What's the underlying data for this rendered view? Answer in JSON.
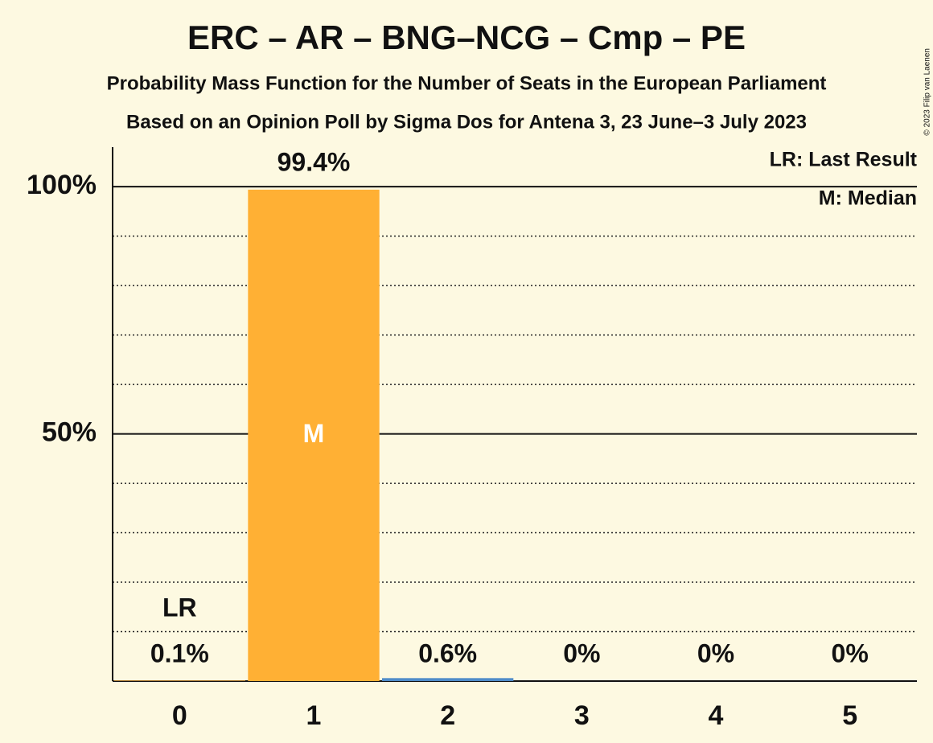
{
  "chart_data": {
    "type": "bar",
    "title": "ERC – AR – BNG–NCG – Cmp – PE",
    "subtitle": "Probability Mass Function for the Number of Seats in the European Parliament",
    "subtitle2": "Based on an Opinion Poll by Sigma Dos for Antena 3, 23 June–3 July 2023",
    "categories": [
      "0",
      "1",
      "2",
      "3",
      "4",
      "5"
    ],
    "values": [
      0.1,
      99.4,
      0.6,
      0,
      0,
      0
    ],
    "value_labels": [
      "0.1%",
      "99.4%",
      "0.6%",
      "0%",
      "0%",
      "0%"
    ],
    "colors": [
      "#ffb034",
      "#ffb034",
      "#4f8cc9",
      "#4f8cc9",
      "#4f8cc9",
      "#4f8cc9"
    ],
    "ylim": [
      0,
      108
    ],
    "yticks": [
      {
        "value": 50,
        "label": "50%"
      },
      {
        "value": 100,
        "label": "100%"
      }
    ],
    "minor_yticks": [
      10,
      20,
      30,
      40,
      60,
      70,
      80,
      90
    ],
    "grid": true,
    "annotations": [
      {
        "text": "LR",
        "category": 0
      },
      {
        "text": "M",
        "category": 1
      }
    ],
    "legend": [
      "LR: Last Result",
      "M: Median"
    ],
    "legend_position": "upper right",
    "copyright": "© 2023 Filip van Laenen"
  }
}
